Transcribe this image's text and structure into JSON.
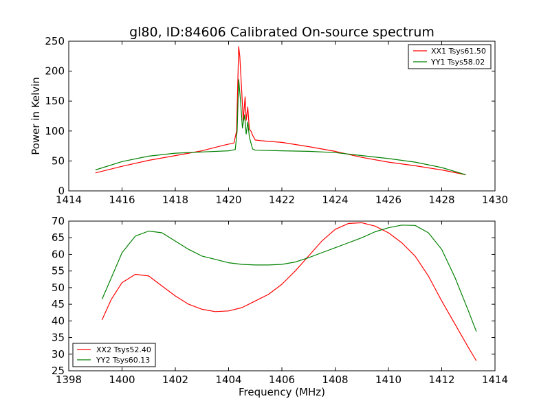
{
  "title": "gl80, ID:84606 Calibrated On-source spectrum",
  "colors": {
    "red": "#ff0000",
    "green": "#008000"
  },
  "chart_data": [
    {
      "type": "line",
      "ylabel": "Power in Kelvin",
      "xlabel": "",
      "xlim": [
        1414,
        1430
      ],
      "ylim": [
        0,
        250
      ],
      "xticks": [
        1414,
        1416,
        1418,
        1420,
        1422,
        1424,
        1426,
        1428,
        1430
      ],
      "yticks": [
        0,
        50,
        100,
        150,
        200,
        250
      ],
      "legend_placement": "top-right",
      "series": [
        {
          "name": "XX1 Tsys61.50",
          "color": "#ff0000",
          "x": [
            1415.0,
            1416.0,
            1417.0,
            1418.0,
            1419.0,
            1419.8,
            1420.2,
            1420.3,
            1420.38,
            1420.42,
            1420.5,
            1420.55,
            1420.62,
            1420.66,
            1420.72,
            1420.78,
            1420.84,
            1420.9,
            1421.0,
            1421.2,
            1422.0,
            1423.0,
            1424.0,
            1425.0,
            1426.0,
            1427.0,
            1428.0,
            1428.9
          ],
          "y": [
            30,
            41,
            51,
            59,
            67,
            76,
            80,
            100,
            241,
            225,
            160,
            118,
            157,
            118,
            140,
            103,
            100,
            93,
            85,
            84,
            81,
            74,
            66,
            56,
            48,
            42,
            35,
            27
          ]
        },
        {
          "name": "YY1 Tsys58.02",
          "color": "#008000",
          "x": [
            1415.0,
            1416.0,
            1417.0,
            1418.0,
            1419.0,
            1420.0,
            1420.25,
            1420.32,
            1420.38,
            1420.45,
            1420.52,
            1420.6,
            1420.66,
            1420.72,
            1420.78,
            1420.84,
            1420.9,
            1421.0,
            1422.0,
            1423.0,
            1424.0,
            1425.0,
            1426.0,
            1427.0,
            1428.0,
            1428.9
          ],
          "y": [
            35,
            49,
            58,
            63,
            65,
            67,
            69,
            100,
            186,
            150,
            105,
            127,
            95,
            115,
            90,
            80,
            70,
            68,
            67,
            66,
            64,
            59,
            54,
            48,
            39,
            27
          ]
        }
      ]
    },
    {
      "type": "line",
      "ylabel": "",
      "xlabel": "Frequency (MHz)",
      "xlim": [
        1398,
        1414
      ],
      "ylim": [
        25,
        70
      ],
      "xticks": [
        1398,
        1400,
        1402,
        1404,
        1406,
        1408,
        1410,
        1412,
        1414
      ],
      "yticks": [
        25,
        30,
        35,
        40,
        45,
        50,
        55,
        60,
        65,
        70
      ],
      "legend_placement": "bottom-left",
      "series": [
        {
          "name": "XX2 Tsys52.40",
          "color": "#ff0000",
          "x": [
            1399.25,
            1399.6,
            1400.0,
            1400.5,
            1401.0,
            1401.5,
            1402.0,
            1402.5,
            1403.0,
            1403.5,
            1404.0,
            1404.5,
            1405.0,
            1405.5,
            1406.0,
            1406.5,
            1407.0,
            1407.5,
            1408.0,
            1408.5,
            1409.0,
            1409.5,
            1410.0,
            1410.5,
            1411.0,
            1411.5,
            1412.0,
            1412.5,
            1413.0,
            1413.3
          ],
          "y": [
            40.3,
            46.5,
            51.5,
            54.0,
            53.5,
            50.5,
            47.5,
            45.0,
            43.5,
            42.8,
            43.0,
            44.0,
            46.0,
            48.0,
            51.0,
            55.0,
            59.5,
            64.0,
            67.5,
            69.3,
            69.5,
            68.5,
            66.5,
            63.5,
            59.5,
            53.5,
            46.0,
            39.0,
            32.0,
            28.0
          ]
        },
        {
          "name": "YY2 Tsys60.13",
          "color": "#008000",
          "x": [
            1399.25,
            1399.6,
            1400.0,
            1400.5,
            1401.0,
            1401.5,
            1402.0,
            1402.5,
            1403.0,
            1403.5,
            1404.0,
            1404.5,
            1405.0,
            1405.5,
            1406.0,
            1406.5,
            1407.0,
            1407.5,
            1408.0,
            1408.5,
            1409.0,
            1409.5,
            1410.0,
            1410.5,
            1411.0,
            1411.5,
            1412.0,
            1412.5,
            1413.0,
            1413.3
          ],
          "y": [
            46.5,
            53.0,
            60.5,
            65.5,
            67.0,
            66.5,
            64.0,
            61.5,
            59.5,
            58.5,
            57.5,
            57.0,
            56.8,
            56.8,
            57.0,
            57.7,
            59.0,
            60.5,
            62.0,
            63.5,
            65.0,
            66.8,
            68.0,
            68.8,
            68.7,
            66.5,
            61.5,
            53.0,
            43.0,
            36.8
          ]
        }
      ]
    }
  ]
}
